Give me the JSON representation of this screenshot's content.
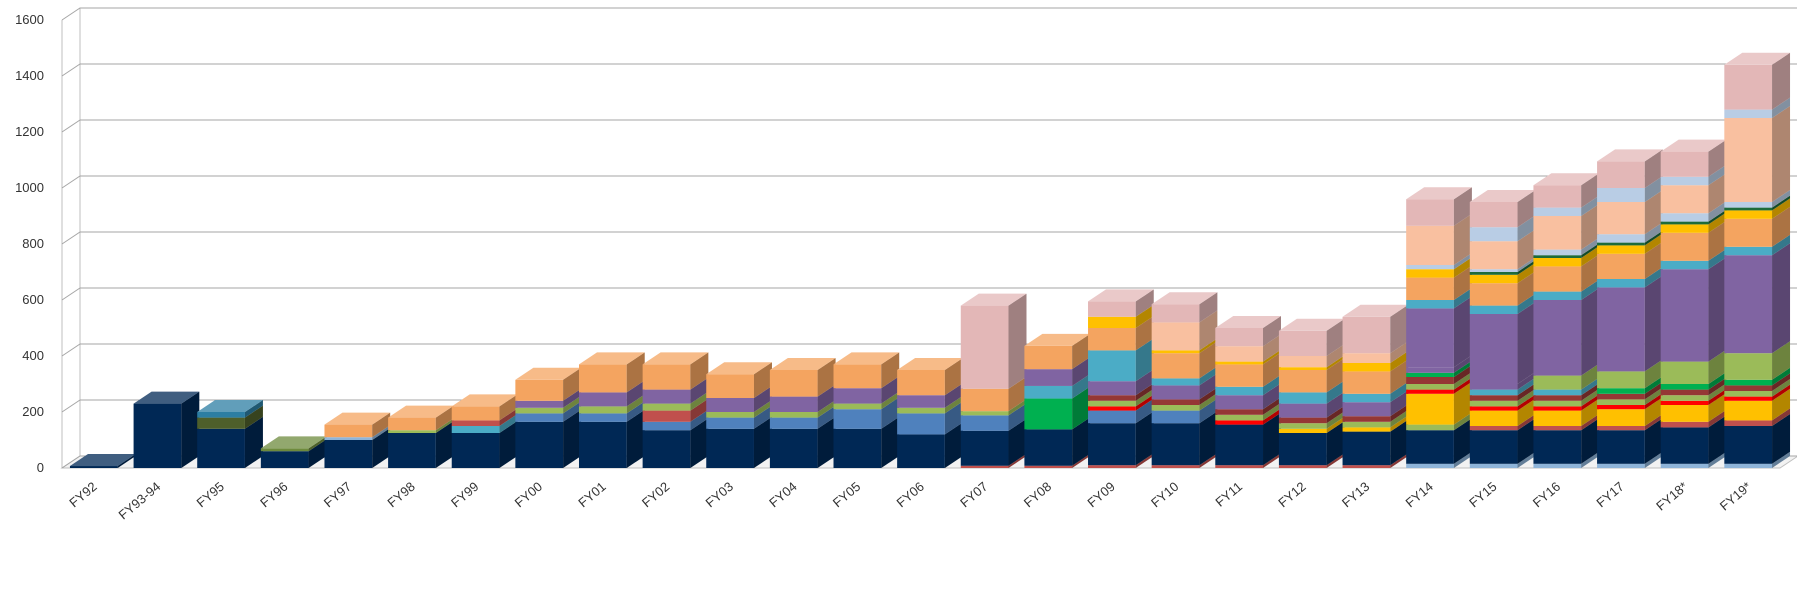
{
  "chart_data": {
    "type": "bar",
    "stacked": true,
    "style": "3d-column",
    "title": "",
    "xlabel": "",
    "ylabel": "",
    "ylim": [
      0,
      1600
    ],
    "yticks": [
      "0",
      "200",
      "400",
      "600",
      "800",
      "1000",
      "1200",
      "1400",
      "1600"
    ],
    "ytick_values": [
      0,
      200,
      400,
      600,
      800,
      1000,
      1200,
      1400,
      1600
    ],
    "grid": true,
    "legend": "none",
    "categories": [
      "FY92",
      "FY93-94",
      "FY95",
      "FY96",
      "FY97",
      "FY98",
      "FY99",
      "FY00",
      "FY01",
      "FY02",
      "FY03",
      "FY04",
      "FY05",
      "FY06",
      "FY07",
      "FY08",
      "FY09",
      "FY10",
      "FY11",
      "FY12",
      "FY13",
      "FY14",
      "FY15",
      "FY16",
      "FY17",
      "FY18*",
      "FY19*"
    ],
    "segments": [
      [
        [
          7,
          "#002855"
        ]
      ],
      [
        [
          230,
          "#002855"
        ]
      ],
      [
        [
          140,
          "#002855"
        ],
        [
          40,
          "#4e5f2b"
        ],
        [
          20,
          "#2c7ea3"
        ]
      ],
      [
        [
          60,
          "#002855"
        ],
        [
          10,
          "#6e8b3d"
        ]
      ],
      [
        [
          100,
          "#002855"
        ],
        [
          10,
          "#8eb4d9"
        ],
        [
          45,
          "#f4a460"
        ]
      ],
      [
        [
          125,
          "#002855"
        ],
        [
          10,
          "#9bbb59"
        ],
        [
          45,
          "#f4a460"
        ]
      ],
      [
        [
          125,
          "#002855"
        ],
        [
          25,
          "#4bacc6"
        ],
        [
          20,
          "#c0504d"
        ],
        [
          50,
          "#f4a460"
        ]
      ],
      [
        [
          165,
          "#002855"
        ],
        [
          30,
          "#4f81bd"
        ],
        [
          20,
          "#9bbb59"
        ],
        [
          25,
          "#8064a2"
        ],
        [
          75,
          "#f4a460"
        ]
      ],
      [
        [
          165,
          "#002855"
        ],
        [
          30,
          "#4f81bd"
        ],
        [
          25,
          "#9bbb59"
        ],
        [
          50,
          "#8064a2"
        ],
        [
          100,
          "#f4a460"
        ]
      ],
      [
        [
          135,
          "#002855"
        ],
        [
          30,
          "#4f81bd"
        ],
        [
          40,
          "#c0504d"
        ],
        [
          25,
          "#9bbb59"
        ],
        [
          50,
          "#8064a2"
        ],
        [
          90,
          "#f4a460"
        ]
      ],
      [
        [
          140,
          "#002855"
        ],
        [
          40,
          "#4f81bd"
        ],
        [
          20,
          "#9bbb59"
        ],
        [
          50,
          "#8064a2"
        ],
        [
          85,
          "#f4a460"
        ]
      ],
      [
        [
          140,
          "#002855"
        ],
        [
          40,
          "#4f81bd"
        ],
        [
          20,
          "#9bbb59"
        ],
        [
          55,
          "#8064a2"
        ],
        [
          95,
          "#f4a460"
        ]
      ],
      [
        [
          140,
          "#002855"
        ],
        [
          70,
          "#4f81bd"
        ],
        [
          20,
          "#9bbb59"
        ],
        [
          55,
          "#8064a2"
        ],
        [
          85,
          "#f4a460"
        ]
      ],
      [
        [
          120,
          "#002855"
        ],
        [
          75,
          "#4f81bd"
        ],
        [
          20,
          "#9bbb59"
        ],
        [
          45,
          "#8064a2"
        ],
        [
          90,
          "#f4a460"
        ]
      ],
      [
        [
          8,
          "#c0504d"
        ],
        [
          125,
          "#002855"
        ],
        [
          55,
          "#4f81bd"
        ],
        [
          15,
          "#9bbb59"
        ],
        [
          80,
          "#f4a460"
        ],
        [
          297,
          "#e3b7b7"
        ]
      ],
      [
        [
          8,
          "#c0504d"
        ],
        [
          130,
          "#002855"
        ],
        [
          110,
          "#00b050"
        ],
        [
          45,
          "#4bacc6"
        ],
        [
          60,
          "#8064a2"
        ],
        [
          83,
          "#f4a460"
        ]
      ],
      [
        [
          10,
          "#c0504d"
        ],
        [
          150,
          "#002855"
        ],
        [
          45,
          "#4f81bd"
        ],
        [
          15,
          "#ff0000"
        ],
        [
          20,
          "#9bbb59"
        ],
        [
          20,
          "#953735"
        ],
        [
          50,
          "#8064a2"
        ],
        [
          110,
          "#4bacc6"
        ],
        [
          80,
          "#f4a460"
        ],
        [
          40,
          "#ffc000"
        ],
        [
          55,
          "#e3b7b7"
        ]
      ],
      [
        [
          10,
          "#c0504d"
        ],
        [
          150,
          "#002855"
        ],
        [
          45,
          "#4f81bd"
        ],
        [
          20,
          "#9bbb59"
        ],
        [
          20,
          "#953735"
        ],
        [
          50,
          "#8064a2"
        ],
        [
          25,
          "#4bacc6"
        ],
        [
          90,
          "#f4a460"
        ],
        [
          10,
          "#ffc000"
        ],
        [
          100,
          "#f9c0a0"
        ],
        [
          65,
          "#e3b7b7"
        ]
      ],
      [
        [
          10,
          "#c0504d"
        ],
        [
          145,
          "#002855"
        ],
        [
          15,
          "#ff0000"
        ],
        [
          20,
          "#9bbb59"
        ],
        [
          20,
          "#953735"
        ],
        [
          50,
          "#8064a2"
        ],
        [
          30,
          "#4bacc6"
        ],
        [
          80,
          "#f4a460"
        ],
        [
          10,
          "#ffc000"
        ],
        [
          55,
          "#f9c0a0"
        ],
        [
          65,
          "#e3b7b7"
        ]
      ],
      [
        [
          10,
          "#c0504d"
        ],
        [
          115,
          "#002855"
        ],
        [
          15,
          "#ffc000"
        ],
        [
          20,
          "#9bbb59"
        ],
        [
          20,
          "#953735"
        ],
        [
          50,
          "#8064a2"
        ],
        [
          40,
          "#4bacc6"
        ],
        [
          80,
          "#f4a460"
        ],
        [
          10,
          "#ffc000"
        ],
        [
          40,
          "#f9c0a0"
        ],
        [
          90,
          "#e3b7b7"
        ]
      ],
      [
        [
          10,
          "#c0504d"
        ],
        [
          120,
          "#002855"
        ],
        [
          15,
          "#ffc000"
        ],
        [
          20,
          "#9bbb59"
        ],
        [
          20,
          "#953735"
        ],
        [
          50,
          "#8064a2"
        ],
        [
          30,
          "#4bacc6"
        ],
        [
          80,
          "#f4a460"
        ],
        [
          30,
          "#ffc000"
        ],
        [
          35,
          "#f9c0a0"
        ],
        [
          130,
          "#e3b7b7"
        ]
      ],
      [
        [
          15,
          "#8eb4d9"
        ],
        [
          120,
          "#002855"
        ],
        [
          20,
          "#9bbb59"
        ],
        [
          110,
          "#ffc000"
        ],
        [
          15,
          "#ff0000"
        ],
        [
          20,
          "#9bbb59"
        ],
        [
          25,
          "#953735"
        ],
        [
          15,
          "#00b050"
        ],
        [
          20,
          "#8064a2"
        ],
        [
          210,
          "#8064a2"
        ],
        [
          30,
          "#4bacc6"
        ],
        [
          80,
          "#f4a460"
        ],
        [
          30,
          "#ffc000"
        ],
        [
          15,
          "#b9cde5"
        ],
        [
          140,
          "#f9c0a0"
        ],
        [
          95,
          "#e3b7b7"
        ]
      ],
      [
        [
          15,
          "#8eb4d9"
        ],
        [
          120,
          "#002855"
        ],
        [
          15,
          "#c0504d"
        ],
        [
          55,
          "#ffc000"
        ],
        [
          15,
          "#ff0000"
        ],
        [
          20,
          "#9bbb59"
        ],
        [
          20,
          "#953735"
        ],
        [
          20,
          "#4bacc6"
        ],
        [
          20,
          "#8064a2"
        ],
        [
          250,
          "#8064a2"
        ],
        [
          30,
          "#4bacc6"
        ],
        [
          80,
          "#f4a460"
        ],
        [
          30,
          "#ffc000"
        ],
        [
          10,
          "#1d6b3a"
        ],
        [
          10,
          "#b9cde5"
        ],
        [
          100,
          "#f9c0a0"
        ],
        [
          50,
          "#b9cde5"
        ],
        [
          90,
          "#e3b7b7"
        ]
      ],
      [
        [
          15,
          "#8eb4d9"
        ],
        [
          120,
          "#002855"
        ],
        [
          15,
          "#c0504d"
        ],
        [
          55,
          "#ffc000"
        ],
        [
          15,
          "#ff0000"
        ],
        [
          20,
          "#9bbb59"
        ],
        [
          20,
          "#953735"
        ],
        [
          20,
          "#4bacc6"
        ],
        [
          50,
          "#9bbb59"
        ],
        [
          270,
          "#8064a2"
        ],
        [
          30,
          "#4bacc6"
        ],
        [
          90,
          "#f4a460"
        ],
        [
          30,
          "#ffc000"
        ],
        [
          10,
          "#1d6b3a"
        ],
        [
          20,
          "#b9cde5"
        ],
        [
          120,
          "#f9c0a0"
        ],
        [
          30,
          "#b9cde5"
        ],
        [
          80,
          "#e3b7b7"
        ]
      ],
      [
        [
          15,
          "#8eb4d9"
        ],
        [
          120,
          "#002855"
        ],
        [
          15,
          "#c0504d"
        ],
        [
          60,
          "#ffc000"
        ],
        [
          15,
          "#ff0000"
        ],
        [
          20,
          "#9bbb59"
        ],
        [
          20,
          "#953735"
        ],
        [
          20,
          "#00b050"
        ],
        [
          60,
          "#9bbb59"
        ],
        [
          300,
          "#8064a2"
        ],
        [
          30,
          "#4bacc6"
        ],
        [
          90,
          "#f4a460"
        ],
        [
          30,
          "#ffc000"
        ],
        [
          10,
          "#1d6b3a"
        ],
        [
          30,
          "#b9cde5"
        ],
        [
          115,
          "#f9c0a0"
        ],
        [
          50,
          "#b9cde5"
        ],
        [
          95,
          "#e3b7b7"
        ]
      ],
      [
        [
          15,
          "#8eb4d9"
        ],
        [
          130,
          "#002855"
        ],
        [
          20,
          "#c0504d"
        ],
        [
          60,
          "#ffc000"
        ],
        [
          15,
          "#ff0000"
        ],
        [
          20,
          "#9bbb59"
        ],
        [
          20,
          "#953735"
        ],
        [
          20,
          "#00b050"
        ],
        [
          80,
          "#9bbb59"
        ],
        [
          330,
          "#8064a2"
        ],
        [
          30,
          "#4bacc6"
        ],
        [
          100,
          "#f4a460"
        ],
        [
          30,
          "#ffc000"
        ],
        [
          10,
          "#1d6b3a"
        ],
        [
          30,
          "#b9cde5"
        ],
        [
          100,
          "#f9c0a0"
        ],
        [
          30,
          "#b9cde5"
        ],
        [
          90,
          "#e3b7b7"
        ]
      ],
      [
        [
          15,
          "#8eb4d9"
        ],
        [
          135,
          "#002855"
        ],
        [
          20,
          "#c0504d"
        ],
        [
          70,
          "#ffc000"
        ],
        [
          15,
          "#ff0000"
        ],
        [
          20,
          "#9bbb59"
        ],
        [
          20,
          "#953735"
        ],
        [
          20,
          "#00b050"
        ],
        [
          95,
          "#9bbb59"
        ],
        [
          350,
          "#8064a2"
        ],
        [
          30,
          "#4bacc6"
        ],
        [
          100,
          "#f4a460"
        ],
        [
          30,
          "#ffc000"
        ],
        [
          10,
          "#1d6b3a"
        ],
        [
          20,
          "#b9cde5"
        ],
        [
          300,
          "#f9c0a0"
        ],
        [
          30,
          "#b9cde5"
        ],
        [
          160,
          "#e3b7b7"
        ]
      ]
    ]
  }
}
